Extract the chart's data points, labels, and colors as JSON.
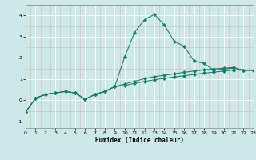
{
  "xlabel": "Humidex (Indice chaleur)",
  "background_color": "#cce8e8",
  "grid_major_color": "#ffffff",
  "grid_minor_color": "#ddb8b8",
  "line_color": "#1a7a6e",
  "xlim": [
    0,
    23
  ],
  "ylim": [
    -1.3,
    4.5
  ],
  "yticks": [
    -1,
    0,
    1,
    2,
    3,
    4
  ],
  "xticks": [
    0,
    1,
    2,
    3,
    4,
    5,
    6,
    7,
    8,
    9,
    10,
    11,
    12,
    13,
    14,
    15,
    16,
    17,
    18,
    19,
    20,
    21,
    22,
    23
  ],
  "x": [
    0,
    1,
    2,
    3,
    4,
    5,
    6,
    7,
    8,
    9,
    10,
    11,
    12,
    13,
    14,
    15,
    16,
    17,
    18,
    19,
    20,
    21,
    22,
    23
  ],
  "line1_y": [
    -0.55,
    0.1,
    0.28,
    0.35,
    0.42,
    0.35,
    0.05,
    0.28,
    0.42,
    0.65,
    2.05,
    3.2,
    3.8,
    4.05,
    3.55,
    2.78,
    2.55,
    1.85,
    1.75,
    1.42,
    1.48,
    1.52,
    1.42,
    1.42
  ],
  "line2_y": [
    -0.55,
    0.1,
    0.28,
    0.35,
    0.42,
    0.35,
    0.05,
    0.28,
    0.42,
    0.65,
    0.77,
    0.9,
    1.02,
    1.12,
    1.18,
    1.25,
    1.32,
    1.38,
    1.44,
    1.48,
    1.52,
    1.55,
    1.42,
    1.42
  ],
  "line3_y": [
    -0.55,
    0.1,
    0.28,
    0.35,
    0.42,
    0.35,
    0.05,
    0.28,
    0.42,
    0.65,
    0.7,
    0.8,
    0.89,
    0.97,
    1.03,
    1.1,
    1.16,
    1.22,
    1.28,
    1.33,
    1.38,
    1.43,
    1.42,
    1.42
  ]
}
